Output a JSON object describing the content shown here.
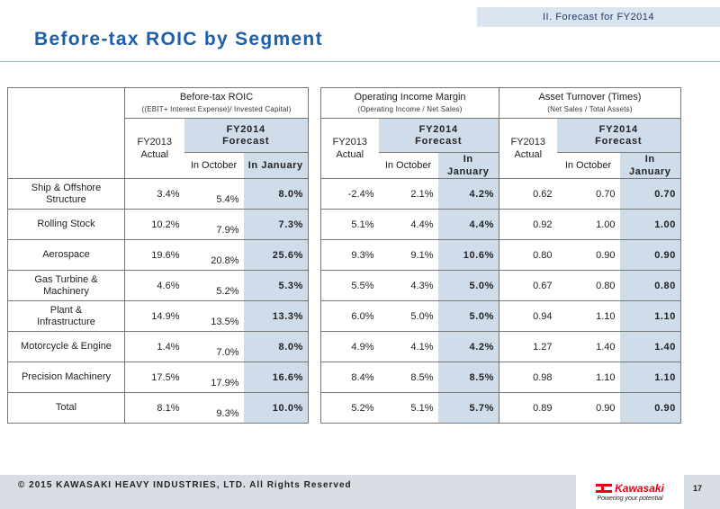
{
  "section": "II.  Forecast for FY2014",
  "title": "Before-tax ROIC by Segment",
  "groups": {
    "roic": {
      "label": "Before-tax ROIC",
      "sub": "((EBIT+ Interest Expense)/ Invested Capital)"
    },
    "opm": {
      "label": "Operating Income Margin",
      "sub": "(Operating Income /  Net Sales)"
    },
    "at": {
      "label": "Asset Turnover  (Times)",
      "sub": "(Net Sales / Total Assets)"
    }
  },
  "col": {
    "actual_1": "FY2013",
    "actual_2": "Actual",
    "fc_1": "FY2014",
    "fc_2": "Forecast",
    "oct": "In October",
    "jan": "In January"
  },
  "rows": [
    {
      "seg1": "Ship & Offshore",
      "seg2": "Structure",
      "v": [
        "3.4%",
        "5.4%",
        "8.0%",
        "-2.4%",
        "2.1%",
        "4.2%",
        "0.62",
        "0.70",
        "0.70"
      ]
    },
    {
      "seg1": "Rolling Stock",
      "seg2": "",
      "v": [
        "10.2%",
        "7.9%",
        "7.3%",
        "5.1%",
        "4.4%",
        "4.4%",
        "0.92",
        "1.00",
        "1.00"
      ]
    },
    {
      "seg1": "Aerospace",
      "seg2": "",
      "v": [
        "19.6%",
        "20.8%",
        "25.6%",
        "9.3%",
        "9.1%",
        "10.6%",
        "0.80",
        "0.90",
        "0.90"
      ]
    },
    {
      "seg1": "Gas Turbine &",
      "seg2": "Machinery",
      "v": [
        "4.6%",
        "5.2%",
        "5.3%",
        "5.5%",
        "4.3%",
        "5.0%",
        "0.67",
        "0.80",
        "0.80"
      ]
    },
    {
      "seg1": "Plant &",
      "seg2": "Infrastructure",
      "v": [
        "14.9%",
        "13.5%",
        "13.3%",
        "6.0%",
        "5.0%",
        "5.0%",
        "0.94",
        "1.10",
        "1.10"
      ]
    },
    {
      "seg1": "Motorcycle & Engine",
      "seg2": "",
      "v": [
        "1.4%",
        "7.0%",
        "8.0%",
        "4.9%",
        "4.1%",
        "4.2%",
        "1.27",
        "1.40",
        "1.40"
      ]
    },
    {
      "seg1": "Precision Machinery",
      "seg2": "",
      "v": [
        "17.5%",
        "17.9%",
        "16.6%",
        "8.4%",
        "8.5%",
        "8.5%",
        "0.98",
        "1.10",
        "1.10"
      ]
    },
    {
      "seg1": "Total",
      "seg2": "",
      "v": [
        "8.1%",
        "9.3%",
        "10.0%",
        "5.2%",
        "5.1%",
        "5.7%",
        "0.89",
        "0.90",
        "0.90"
      ]
    }
  ],
  "footer": {
    "copyright": "© 2015 KAWASAKI HEAVY INDUSTRIES, LTD. All Rights Reserved",
    "logo": "Kawasaki",
    "tagline": "Powering your potential",
    "page": "17"
  },
  "colors": {
    "title": "#1f5fa8",
    "highlight": "#cfdcea",
    "logo": "#e60012"
  }
}
